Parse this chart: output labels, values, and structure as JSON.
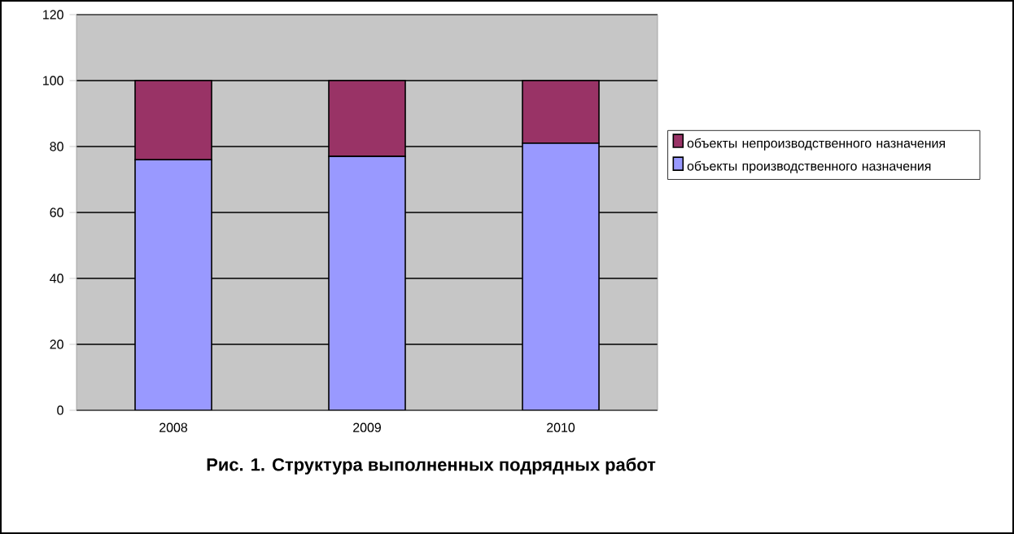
{
  "chart_data": {
    "type": "bar",
    "stacked": true,
    "title": "Рис. 1. Структура выполненных подрядных работ",
    "categories": [
      "2008",
      "2009",
      "2010"
    ],
    "series": [
      {
        "name": "объекты производственного назначения",
        "color": "#9999ff",
        "values": [
          76,
          77,
          81
        ]
      },
      {
        "name": "объекты непроизводственного назначения",
        "color": "#993366",
        "values": [
          24,
          23,
          19
        ]
      }
    ],
    "ylim": [
      0,
      120
    ],
    "yticks": [
      0,
      20,
      40,
      60,
      80,
      100,
      120
    ],
    "grid": "y",
    "legend": "right"
  }
}
